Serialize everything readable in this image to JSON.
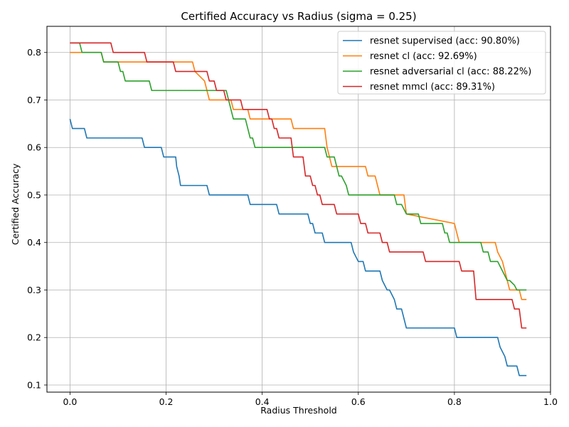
{
  "chart_data": {
    "type": "line",
    "title": "Certified Accuracy vs Radius (sigma = 0.25)",
    "xlabel": "Radius Threshold",
    "ylabel": "Certified Accuracy",
    "xlim": [
      -0.048,
      1.0
    ],
    "ylim": [
      0.085,
      0.855
    ],
    "xticks": [
      0.0,
      0.2,
      0.4,
      0.6,
      0.8,
      1.0
    ],
    "xtick_labels": [
      "0.0",
      "0.2",
      "0.4",
      "0.6",
      "0.8",
      "1.0"
    ],
    "yticks": [
      0.1,
      0.2,
      0.3,
      0.4,
      0.5,
      0.6,
      0.7,
      0.8
    ],
    "ytick_labels": [
      "0.1",
      "0.2",
      "0.3",
      "0.4",
      "0.5",
      "0.6",
      "0.7",
      "0.8"
    ],
    "grid": true,
    "legend_position": "top-right",
    "series": [
      {
        "name": "resnet supervised (acc: 90.80%)",
        "color": "#1f77b4",
        "x": [
          0.0,
          0.005,
          0.03,
          0.035,
          0.15,
          0.155,
          0.19,
          0.195,
          0.22,
          0.222,
          0.227,
          0.23,
          0.285,
          0.29,
          0.37,
          0.375,
          0.43,
          0.435,
          0.495,
          0.5,
          0.505,
          0.51,
          0.525,
          0.53,
          0.585,
          0.59,
          0.6,
          0.61,
          0.615,
          0.64,
          0.645,
          0.65,
          0.66,
          0.665,
          0.675,
          0.68,
          0.69,
          0.7,
          0.8,
          0.805,
          0.89,
          0.895,
          0.905,
          0.91,
          0.93,
          0.935,
          0.95
        ],
        "y": [
          0.66,
          0.64,
          0.64,
          0.62,
          0.62,
          0.6,
          0.6,
          0.58,
          0.58,
          0.56,
          0.54,
          0.52,
          0.52,
          0.5,
          0.5,
          0.48,
          0.48,
          0.46,
          0.46,
          0.44,
          0.44,
          0.42,
          0.42,
          0.4,
          0.4,
          0.38,
          0.36,
          0.36,
          0.34,
          0.34,
          0.34,
          0.32,
          0.3,
          0.3,
          0.28,
          0.26,
          0.26,
          0.22,
          0.22,
          0.2,
          0.2,
          0.18,
          0.16,
          0.14,
          0.14,
          0.12,
          0.12
        ]
      },
      {
        "name": "resnet cl (acc: 92.69%)",
        "color": "#ff7f0e",
        "x": [
          0.0,
          0.065,
          0.07,
          0.255,
          0.26,
          0.28,
          0.285,
          0.29,
          0.335,
          0.34,
          0.37,
          0.375,
          0.46,
          0.465,
          0.53,
          0.535,
          0.54,
          0.545,
          0.615,
          0.62,
          0.635,
          0.64,
          0.645,
          0.65,
          0.695,
          0.7,
          0.8,
          0.805,
          0.81,
          0.815,
          0.885,
          0.89,
          0.9,
          0.905,
          0.91,
          0.915,
          0.935,
          0.94,
          0.95
        ],
        "y": [
          0.8,
          0.8,
          0.78,
          0.78,
          0.76,
          0.74,
          0.72,
          0.7,
          0.7,
          0.68,
          0.68,
          0.66,
          0.66,
          0.64,
          0.64,
          0.6,
          0.58,
          0.56,
          0.56,
          0.54,
          0.54,
          0.52,
          0.5,
          0.5,
          0.5,
          0.46,
          0.44,
          0.42,
          0.4,
          0.4,
          0.4,
          0.38,
          0.36,
          0.34,
          0.32,
          0.3,
          0.3,
          0.28,
          0.28
        ]
      },
      {
        "name": "resnet adversarial cl (acc: 88.22%)",
        "color": "#2ca02c",
        "x": [
          0.0,
          0.02,
          0.025,
          0.065,
          0.07,
          0.1,
          0.105,
          0.11,
          0.115,
          0.165,
          0.17,
          0.325,
          0.33,
          0.335,
          0.34,
          0.365,
          0.37,
          0.375,
          0.38,
          0.385,
          0.39,
          0.53,
          0.535,
          0.55,
          0.555,
          0.56,
          0.565,
          0.575,
          0.58,
          0.665,
          0.67,
          0.675,
          0.68,
          0.685,
          0.69,
          0.7,
          0.725,
          0.73,
          0.775,
          0.78,
          0.785,
          0.79,
          0.855,
          0.86,
          0.87,
          0.875,
          0.89,
          0.895,
          0.9,
          0.91,
          0.915,
          0.925,
          0.93,
          0.95
        ],
        "y": [
          0.82,
          0.82,
          0.8,
          0.8,
          0.78,
          0.78,
          0.76,
          0.76,
          0.74,
          0.74,
          0.72,
          0.72,
          0.7,
          0.68,
          0.66,
          0.66,
          0.64,
          0.62,
          0.62,
          0.6,
          0.6,
          0.6,
          0.58,
          0.58,
          0.56,
          0.54,
          0.54,
          0.52,
          0.5,
          0.5,
          0.5,
          0.5,
          0.48,
          0.48,
          0.48,
          0.46,
          0.46,
          0.44,
          0.44,
          0.42,
          0.42,
          0.4,
          0.4,
          0.38,
          0.38,
          0.36,
          0.36,
          0.35,
          0.34,
          0.32,
          0.32,
          0.31,
          0.3,
          0.3
        ]
      },
      {
        "name": "resnet mmcl (acc: 89.31%)",
        "color": "#d62728",
        "x": [
          0.0,
          0.085,
          0.09,
          0.155,
          0.16,
          0.215,
          0.22,
          0.285,
          0.29,
          0.3,
          0.305,
          0.32,
          0.325,
          0.355,
          0.36,
          0.41,
          0.415,
          0.42,
          0.425,
          0.43,
          0.435,
          0.46,
          0.465,
          0.485,
          0.49,
          0.5,
          0.505,
          0.51,
          0.515,
          0.52,
          0.525,
          0.55,
          0.555,
          0.6,
          0.605,
          0.615,
          0.62,
          0.645,
          0.65,
          0.66,
          0.665,
          0.735,
          0.74,
          0.795,
          0.8,
          0.81,
          0.815,
          0.84,
          0.845,
          0.905,
          0.91,
          0.92,
          0.925,
          0.935,
          0.94,
          0.95
        ],
        "y": [
          0.82,
          0.82,
          0.8,
          0.8,
          0.78,
          0.78,
          0.76,
          0.76,
          0.74,
          0.74,
          0.72,
          0.72,
          0.7,
          0.7,
          0.68,
          0.68,
          0.66,
          0.66,
          0.64,
          0.64,
          0.62,
          0.62,
          0.58,
          0.58,
          0.54,
          0.54,
          0.52,
          0.52,
          0.5,
          0.5,
          0.48,
          0.48,
          0.46,
          0.46,
          0.44,
          0.44,
          0.42,
          0.42,
          0.4,
          0.4,
          0.38,
          0.38,
          0.36,
          0.36,
          0.36,
          0.36,
          0.34,
          0.34,
          0.28,
          0.28,
          0.28,
          0.28,
          0.26,
          0.26,
          0.22,
          0.22
        ]
      }
    ]
  }
}
